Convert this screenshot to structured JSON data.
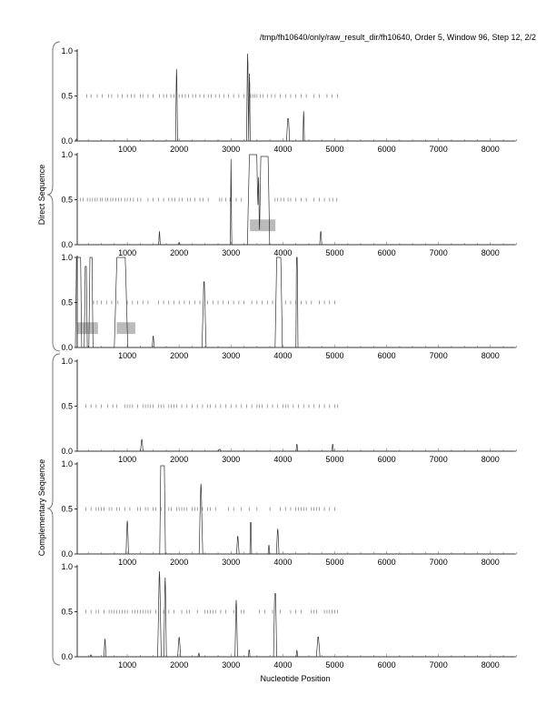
{
  "chart_data": {
    "type": "line",
    "title": "/tmp/fh10640/only/raw_result_dir/fh10640, Order 5, Window 96, Step 12, 2/2",
    "xlabel": "Nucleotide Position",
    "group_labels": [
      "Direct Sequence",
      "Complementary Sequence"
    ],
    "xlim": [
      0,
      8500
    ],
    "ylim": [
      0,
      1
    ],
    "x_ticks": [
      1000,
      2000,
      3000,
      4000,
      5000,
      6000,
      7000,
      8000
    ],
    "y_ticks": [
      "0.0",
      "0.5",
      "1.0"
    ],
    "panels": [
      {
        "name": "direct-frame-1",
        "peaks": [
          [
            1950,
            0.8,
            20,
            3
          ],
          [
            3320,
            0.97,
            20,
            3
          ],
          [
            3355,
            0.75,
            15,
            3
          ],
          [
            4100,
            0.25,
            30,
            8
          ],
          [
            4400,
            0.33,
            15,
            3
          ],
          [
            20,
            0.02,
            20,
            5
          ]
        ],
        "orf_ticks_range": [
          200,
          5100
        ],
        "orf_ticks": [
          220,
          300,
          420,
          520,
          640,
          700,
          820,
          900,
          1000,
          1080,
          1140,
          1250,
          1300,
          1400,
          1500,
          1620,
          1700,
          1760,
          1840,
          1900,
          2000,
          2060,
          2120,
          2180,
          2260,
          2320,
          2400,
          2480,
          2560,
          2620,
          2700,
          2780,
          2860,
          2950,
          3050,
          3150,
          3250,
          3380,
          3420,
          3460,
          3500,
          3560,
          3620,
          3700,
          3780,
          3850,
          3950,
          4050,
          4150,
          4250,
          4350,
          4450,
          4600,
          4700,
          4850,
          4950,
          5050
        ],
        "shaded": []
      },
      {
        "name": "direct-frame-2",
        "peaks": [
          [
            3000,
            0.95,
            12,
            2
          ],
          [
            3425,
            1.0,
            110,
            70
          ],
          [
            3530,
            0.75,
            20,
            3
          ],
          [
            3645,
            0.98,
            100,
            70
          ],
          [
            1620,
            0.15,
            15,
            2
          ],
          [
            4730,
            0.15,
            20,
            3
          ],
          [
            2000,
            0.02,
            20,
            5
          ]
        ],
        "orf_ticks": [
          100,
          150,
          230,
          280,
          330,
          380,
          420,
          480,
          520,
          580,
          620,
          680,
          720,
          780,
          830,
          880,
          950,
          1000,
          1060,
          1120,
          1200,
          1260,
          1400,
          1500,
          1600,
          1700,
          1800,
          1860,
          1920,
          2000,
          2060,
          2160,
          2220,
          2300,
          2400,
          2460,
          2560,
          2780,
          2820,
          2900,
          2980,
          3100,
          3200,
          3850,
          3900,
          3960,
          4020,
          4100,
          4150,
          4250,
          4350,
          4450,
          4600,
          4700,
          4800,
          4900,
          4960,
          5040
        ],
        "shaded": [
          [
            3330,
            3820
          ]
        ]
      },
      {
        "name": "direct-frame-3",
        "peaks": [
          [
            60,
            1.0,
            60,
            40
          ],
          [
            200,
            0.9,
            30,
            10
          ],
          [
            300,
            1.0,
            40,
            20
          ],
          [
            880,
            1.0,
            130,
            80
          ],
          [
            960,
            0.85,
            40,
            10
          ],
          [
            1500,
            0.13,
            20,
            3
          ],
          [
            2480,
            0.73,
            40,
            5
          ],
          [
            3920,
            1.0,
            70,
            40
          ],
          [
            4270,
            1.0,
            20,
            8
          ]
        ],
        "orf_ticks": [
          350,
          420,
          500,
          600,
          700,
          820,
          1000,
          1100,
          1200,
          1300,
          1400,
          1600,
          1700,
          1800,
          1900,
          2000,
          2100,
          2200,
          2300,
          2400,
          2550,
          2650,
          2750,
          2850,
          2950,
          3050,
          3150,
          3250,
          3400,
          3500,
          3600,
          3700,
          3800,
          4050,
          4150,
          4250,
          4350,
          4450,
          4550,
          4700,
          4800,
          4900,
          5000
        ],
        "shaded": [
          [
            0,
            400
          ],
          [
            760,
            1120
          ]
        ]
      },
      {
        "name": "complementary-frame-1",
        "peaks": [
          [
            1280,
            0.13,
            25,
            4
          ],
          [
            4270,
            0.08,
            15,
            3
          ],
          [
            4960,
            0.08,
            15,
            3
          ],
          [
            2780,
            0.02,
            30,
            10
          ]
        ],
        "orf_ticks": [
          200,
          300,
          400,
          500,
          620,
          720,
          800,
          950,
          1000,
          1050,
          1100,
          1200,
          1300,
          1350,
          1400,
          1450,
          1500,
          1600,
          1650,
          1700,
          1800,
          1850,
          1900,
          1950,
          2050,
          2150,
          2250,
          2350,
          2450,
          2550,
          2600,
          2700,
          2800,
          2900,
          3000,
          3100,
          3200,
          3300,
          3400,
          3500,
          3550,
          3600,
          3700,
          3800,
          3900,
          4000,
          4050,
          4100,
          4200,
          4300,
          4400,
          4500,
          4600,
          4700,
          4800,
          4900,
          5000,
          5050
        ],
        "shaded": []
      },
      {
        "name": "complementary-frame-2",
        "peaks": [
          [
            1000,
            0.37,
            25,
            3
          ],
          [
            1680,
            0.98,
            55,
            35
          ],
          [
            2420,
            0.78,
            35,
            3
          ],
          [
            3130,
            0.2,
            25,
            3
          ],
          [
            3380,
            0.35,
            15,
            5
          ],
          [
            3730,
            0.1,
            15,
            3
          ],
          [
            3900,
            0.28,
            25,
            3
          ]
        ],
        "orf_ticks": [
          200,
          300,
          400,
          450,
          500,
          550,
          650,
          700,
          800,
          850,
          950,
          1050,
          1200,
          1250,
          1350,
          1400,
          1500,
          1550,
          1650,
          1800,
          1850,
          1950,
          2000,
          2050,
          2100,
          2150,
          2250,
          2300,
          2350,
          2450,
          2550,
          2600,
          2700,
          2950,
          3050,
          3200,
          3350,
          3500,
          3750,
          3950,
          4050,
          4150,
          4250,
          4300,
          4350,
          4400,
          4450,
          4550,
          4600,
          4650,
          4700,
          4800,
          4900,
          5000
        ],
        "shaded": []
      },
      {
        "name": "complementary-frame-3",
        "peaks": [
          [
            570,
            0.2,
            20,
            3
          ],
          [
            1620,
            0.95,
            35,
            3
          ],
          [
            1730,
            0.88,
            25,
            3
          ],
          [
            2000,
            0.22,
            30,
            3
          ],
          [
            3100,
            0.63,
            25,
            3
          ],
          [
            3850,
            0.7,
            30,
            10
          ],
          [
            4680,
            0.22,
            35,
            5
          ],
          [
            4270,
            0.07,
            15,
            3
          ],
          [
            3350,
            0.08,
            15,
            3
          ],
          [
            2380,
            0.04,
            15,
            3
          ],
          [
            300,
            0.02,
            20,
            5
          ]
        ],
        "orf_ticks": [
          200,
          300,
          400,
          450,
          550,
          650,
          700,
          750,
          800,
          850,
          900,
          950,
          1000,
          1100,
          1150,
          1200,
          1250,
          1300,
          1350,
          1400,
          1450,
          1550,
          1700,
          1800,
          1900,
          2050,
          2150,
          2200,
          2350,
          2500,
          2550,
          2600,
          2650,
          2700,
          2800,
          2900,
          3050,
          3200,
          3250,
          3550,
          3650,
          3800,
          3950,
          4150,
          4250,
          4350,
          4550,
          4600,
          4650,
          4800,
          4850,
          4900,
          4950,
          5000,
          5050
        ],
        "shaded": []
      }
    ]
  }
}
